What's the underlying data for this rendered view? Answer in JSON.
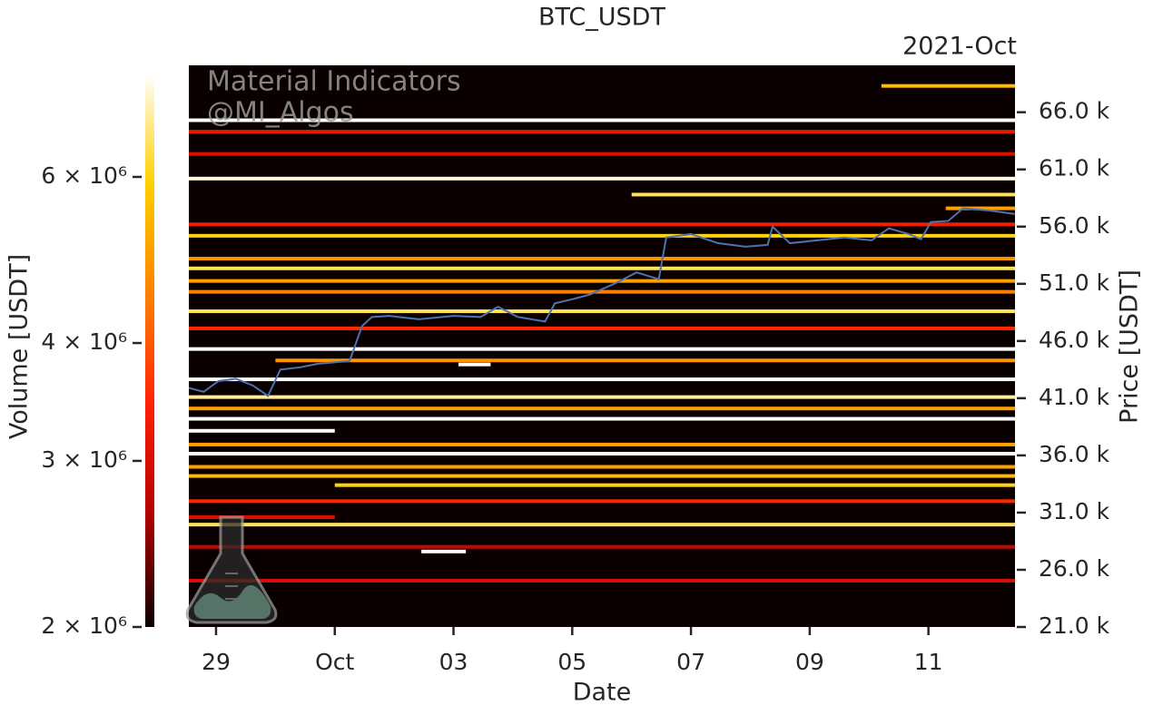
{
  "chart_data": {
    "type": "heatmap",
    "title": "BTC_USDT",
    "offset_label": "2021-Oct",
    "watermark": [
      "Material Indicators",
      "@MI_Algos"
    ],
    "x_label": "Date",
    "y_label": "Price [USDT]",
    "colorbar_label": "Volume [USDT]",
    "background": "#0a0000",
    "colormap": [
      "#0a0000",
      "#b00000",
      "#ff2000",
      "#ff8000",
      "#ffd000",
      "#ffffff"
    ],
    "xlim": [
      "2021-09-28T13:00",
      "2021-10-12T11:00"
    ],
    "xticks": [
      {
        "value": "2021-09-29",
        "label": "29"
      },
      {
        "value": "2021-10-01",
        "label": "Oct"
      },
      {
        "value": "2021-10-03",
        "label": "03"
      },
      {
        "value": "2021-10-05",
        "label": "05"
      },
      {
        "value": "2021-10-07",
        "label": "07"
      },
      {
        "value": "2021-10-09",
        "label": "09"
      },
      {
        "value": "2021-10-11",
        "label": "11"
      }
    ],
    "ylim": [
      21000,
      70100
    ],
    "yticks": [
      {
        "value": 21000,
        "label": "21.0 k"
      },
      {
        "value": 26000,
        "label": "26.0 k"
      },
      {
        "value": 31000,
        "label": "31.0 k"
      },
      {
        "value": 36000,
        "label": "36.0 k"
      },
      {
        "value": 41000,
        "label": "41.0 k"
      },
      {
        "value": 46000,
        "label": "46.0 k"
      },
      {
        "value": 51000,
        "label": "51.0 k"
      },
      {
        "value": 56000,
        "label": "56.0 k"
      },
      {
        "value": 61000,
        "label": "61.0 k"
      },
      {
        "value": 66000,
        "label": "66.0 k"
      }
    ],
    "colorbar": {
      "log": true,
      "lim": [
        2000000,
        7740000
      ],
      "ticks": [
        {
          "value": 2000000,
          "label": "2 × 10⁶"
        },
        {
          "value": 3000000,
          "label": "3 × 10⁶"
        },
        {
          "value": 4000000,
          "label": "4 × 10⁶"
        },
        {
          "value": 6000000,
          "label": "6 × 10⁶"
        }
      ]
    },
    "bands": [
      {
        "price": 68300,
        "start": "2021-10-10T05:00",
        "end": "2021-10-12T11:00",
        "volume": 5500000
      },
      {
        "price": 65300,
        "start": "2021-09-28T13:00",
        "end": "2021-10-12T11:00",
        "volume": 7700000
      },
      {
        "price": 64300,
        "start": "2021-09-28T13:00",
        "end": "2021-10-12T11:00",
        "volume": 3200000
      },
      {
        "price": 62350,
        "start": "2021-09-28T13:00",
        "end": "2021-10-12T11:00",
        "volume": 3000000
      },
      {
        "price": 60200,
        "start": "2021-09-28T13:00",
        "end": "2021-10-12T11:00",
        "volume": 7500000
      },
      {
        "price": 58800,
        "start": "2021-10-06T00:00",
        "end": "2021-10-12T11:00",
        "volume": 6500000
      },
      {
        "price": 57600,
        "start": "2021-10-11T07:00",
        "end": "2021-10-12T11:00",
        "volume": 5000000
      },
      {
        "price": 56200,
        "start": "2021-09-28T13:00",
        "end": "2021-10-12T11:00",
        "volume": 3300000
      },
      {
        "price": 55200,
        "start": "2021-09-28T13:00",
        "end": "2021-10-12T11:00",
        "volume": 6000000
      },
      {
        "price": 53200,
        "start": "2021-09-28T13:00",
        "end": "2021-10-12T11:00",
        "volume": 4800000
      },
      {
        "price": 52350,
        "start": "2021-09-28T13:00",
        "end": "2021-10-12T11:00",
        "volume": 6500000
      },
      {
        "price": 51250,
        "start": "2021-09-28T13:00",
        "end": "2021-10-12T11:00",
        "volume": 5000000
      },
      {
        "price": 50300,
        "start": "2021-09-28T13:00",
        "end": "2021-10-12T11:00",
        "volume": 4500000
      },
      {
        "price": 48600,
        "start": "2021-09-28T13:00",
        "end": "2021-10-12T11:00",
        "volume": 6500000
      },
      {
        "price": 47100,
        "start": "2021-09-28T13:00",
        "end": "2021-10-12T11:00",
        "volume": 3500000
      },
      {
        "price": 45300,
        "start": "2021-09-28T13:00",
        "end": "2021-10-12T11:00",
        "volume": 7700000
      },
      {
        "price": 44300,
        "start": "2021-09-30T00:00",
        "end": "2021-10-12T11:00",
        "volume": 4800000
      },
      {
        "price": 43950,
        "start": "2021-10-03T02:00",
        "end": "2021-10-03T15:00",
        "volume": 7700000
      },
      {
        "price": 42650,
        "start": "2021-09-28T13:00",
        "end": "2021-10-12T11:00",
        "volume": 7700000
      },
      {
        "price": 41100,
        "start": "2021-09-28T13:00",
        "end": "2021-10-12T11:00",
        "volume": 7000000
      },
      {
        "price": 40100,
        "start": "2021-09-28T13:00",
        "end": "2021-10-12T11:00",
        "volume": 5000000
      },
      {
        "price": 39200,
        "start": "2021-09-28T13:00",
        "end": "2021-10-12T11:00",
        "volume": 7700000
      },
      {
        "price": 38150,
        "start": "2021-09-28T13:00",
        "end": "2021-10-01T00:00",
        "volume": 7700000
      },
      {
        "price": 36950,
        "start": "2021-09-28T13:00",
        "end": "2021-10-12T11:00",
        "volume": 5000000
      },
      {
        "price": 36150,
        "start": "2021-09-28T13:00",
        "end": "2021-10-12T11:00",
        "volume": 7700000
      },
      {
        "price": 35000,
        "start": "2021-09-28T13:00",
        "end": "2021-10-12T11:00",
        "volume": 5000000
      },
      {
        "price": 34200,
        "start": "2021-09-28T13:00",
        "end": "2021-10-12T11:00",
        "volume": 5500000
      },
      {
        "price": 33400,
        "start": "2021-10-01T00:00",
        "end": "2021-10-12T11:00",
        "volume": 6000000
      },
      {
        "price": 32000,
        "start": "2021-09-28T13:00",
        "end": "2021-10-12T11:00",
        "volume": 3500000
      },
      {
        "price": 30600,
        "start": "2021-09-28T13:00",
        "end": "2021-10-01T00:00",
        "volume": 3000000
      },
      {
        "price": 29950,
        "start": "2021-09-28T13:00",
        "end": "2021-10-12T11:00",
        "volume": 6500000
      },
      {
        "price": 28000,
        "start": "2021-09-28T13:00",
        "end": "2021-10-12T11:00",
        "volume": 2800000
      },
      {
        "price": 27600,
        "start": "2021-10-02T11:00",
        "end": "2021-10-03T05:00",
        "volume": 7700000
      },
      {
        "price": 25050,
        "start": "2021-09-28T13:00",
        "end": "2021-10-12T11:00",
        "volume": 3000000
      }
    ],
    "price": {
      "color": "#4c72b0",
      "x": [
        "2021-09-28T13:00",
        "2021-09-28T19:00",
        "2021-09-29T01:00",
        "2021-09-29T08:00",
        "2021-09-29T15:00",
        "2021-09-29T21:00",
        "2021-09-30T02:00",
        "2021-09-30T10:00",
        "2021-09-30T17:00",
        "2021-10-01T06:00",
        "2021-10-01T11:00",
        "2021-10-01T15:00",
        "2021-10-01T22:00",
        "2021-10-02T10:00",
        "2021-10-03T00:00",
        "2021-10-03T11:00",
        "2021-10-03T18:00",
        "2021-10-04T02:00",
        "2021-10-04T13:00",
        "2021-10-04T17:00",
        "2021-10-05T00:00",
        "2021-10-05T07:00",
        "2021-10-05T18:00",
        "2021-10-06T02:00",
        "2021-10-06T11:00",
        "2021-10-06T14:00",
        "2021-10-07T00:00",
        "2021-10-07T11:00",
        "2021-10-07T22:00",
        "2021-10-08T07:00",
        "2021-10-08T09:00",
        "2021-10-08T16:00",
        "2021-10-09T03:00",
        "2021-10-09T14:00",
        "2021-10-10T01:00",
        "2021-10-10T08:00",
        "2021-10-10T16:00",
        "2021-10-10T21:00",
        "2021-10-11T01:00",
        "2021-10-11T08:00",
        "2021-10-11T14:00",
        "2021-10-12T01:00",
        "2021-10-12T11:00"
      ],
      "values": [
        41900,
        41560,
        42500,
        42700,
        42100,
        41200,
        43500,
        43700,
        44000,
        44250,
        47300,
        48100,
        48200,
        47900,
        48200,
        48100,
        49000,
        48100,
        47700,
        49300,
        49650,
        50050,
        51100,
        52000,
        51400,
        55050,
        55350,
        54550,
        54250,
        54400,
        56000,
        54550,
        54800,
        55050,
        54800,
        55850,
        55350,
        54900,
        56400,
        56500,
        57600,
        57400,
        57100
      ]
    }
  }
}
